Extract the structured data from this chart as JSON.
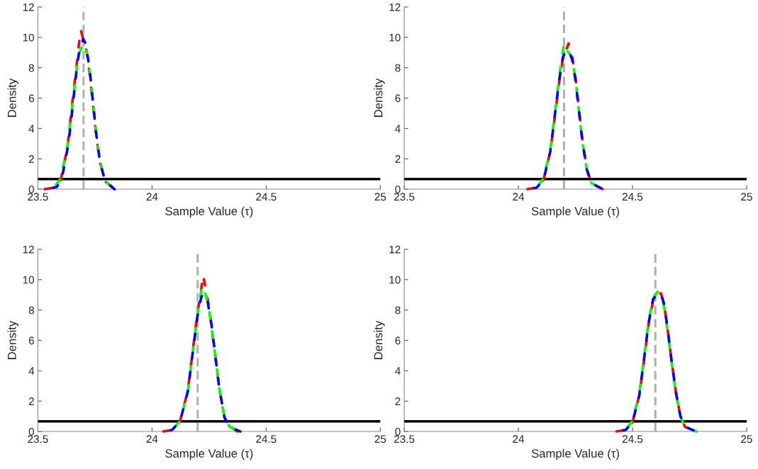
{
  "chart_data": [
    {
      "type": "line",
      "xlabel": "Sample Value (τ)",
      "ylabel": "Density",
      "xlim": [
        23.5,
        25
      ],
      "xticks": [
        23.5,
        24,
        24.5,
        25
      ],
      "ylim": [
        0,
        12
      ],
      "yticks": [
        0,
        2,
        4,
        6,
        8,
        10,
        12
      ],
      "line_style": "dashed",
      "legend": false,
      "grid": false,
      "ref_lines": [
        {
          "axis": "x",
          "value": 23.7,
          "color": "#b0b0b0",
          "line_style": "dashed"
        },
        {
          "axis": "y",
          "value": 0.67,
          "color": "#000000",
          "line_style": "solid"
        }
      ],
      "series": [
        {
          "color": "#ff0000",
          "x": [
            23.53,
            23.57,
            23.6,
            23.63,
            23.65,
            23.67,
            23.68,
            23.688,
            23.7,
            23.71,
            23.725,
            23.74,
            23.755,
            23.77,
            23.795,
            23.84
          ],
          "values": [
            0,
            0.1,
            0.6,
            2.8,
            5.6,
            8.2,
            9.6,
            10.5,
            9.8,
            9.4,
            7.8,
            5.8,
            3.6,
            1.9,
            0.5,
            0
          ]
        },
        {
          "color": "#00ff00",
          "x": [
            23.53,
            23.57,
            23.6,
            23.63,
            23.65,
            23.67,
            23.68,
            23.69,
            23.7,
            23.71,
            23.725,
            23.74,
            23.755,
            23.77,
            23.795,
            23.84
          ],
          "values": [
            0,
            0.1,
            0.7,
            2.9,
            5.4,
            7.9,
            8.9,
            9.3,
            9.6,
            9.4,
            8.0,
            6.1,
            3.8,
            1.9,
            0.5,
            0
          ]
        },
        {
          "color": "#0000ff",
          "x": [
            23.537,
            23.583,
            23.605,
            23.634,
            23.652,
            23.669,
            23.68,
            23.688,
            23.698,
            23.709,
            23.726,
            23.738,
            23.755,
            23.772,
            23.795,
            23.836
          ],
          "values": [
            0,
            0.15,
            0.7,
            3.0,
            5.4,
            7.8,
            9.0,
            9.2,
            9.9,
            9.6,
            8.0,
            6.2,
            3.7,
            1.8,
            0.5,
            0
          ]
        }
      ]
    },
    {
      "type": "line",
      "xlabel": "Sample Value (τ)",
      "ylabel": "Density",
      "xlim": [
        23.5,
        25
      ],
      "xticks": [
        23.5,
        24,
        24.5,
        25
      ],
      "ylim": [
        0,
        12
      ],
      "yticks": [
        0,
        2,
        4,
        6,
        8,
        10,
        12
      ],
      "line_style": "dashed",
      "legend": false,
      "grid": false,
      "ref_lines": [
        {
          "axis": "x",
          "value": 24.2,
          "color": "#b0b0b0",
          "line_style": "dashed"
        },
        {
          "axis": "y",
          "value": 0.67,
          "color": "#000000",
          "line_style": "solid"
        }
      ],
      "series": [
        {
          "color": "#ff0000",
          "x": [
            24.04,
            24.08,
            24.11,
            24.14,
            24.16,
            24.18,
            24.195,
            24.21,
            24.22,
            24.235,
            24.25,
            24.265,
            24.28,
            24.3,
            24.32,
            24.37
          ],
          "values": [
            0,
            0.1,
            0.6,
            2.5,
            4.8,
            7.2,
            8.6,
            9.2,
            9.6,
            8.8,
            7.4,
            5.3,
            3.3,
            1.3,
            0.4,
            0
          ]
        },
        {
          "color": "#00ff00",
          "x": [
            24.04,
            24.08,
            24.11,
            24.14,
            24.16,
            24.18,
            24.2,
            24.21,
            24.22,
            24.235,
            24.25,
            24.265,
            24.28,
            24.3,
            24.32,
            24.37
          ],
          "values": [
            0,
            0.1,
            0.7,
            2.6,
            5.0,
            7.5,
            9.6,
            9.2,
            9.0,
            8.7,
            7.3,
            5.2,
            3.2,
            1.3,
            0.4,
            0
          ]
        },
        {
          "color": "#0000ff",
          "x": [
            24.04,
            24.08,
            24.11,
            24.14,
            24.16,
            24.18,
            24.195,
            24.21,
            24.22,
            24.235,
            24.25,
            24.265,
            24.28,
            24.3,
            24.32,
            24.37
          ],
          "values": [
            0,
            0.1,
            0.6,
            2.5,
            4.9,
            7.3,
            8.7,
            9.2,
            9.1,
            8.6,
            7.2,
            5.2,
            3.2,
            1.3,
            0.4,
            0
          ]
        }
      ]
    },
    {
      "type": "line",
      "xlabel": "Sample Value (τ)",
      "ylabel": "Density",
      "xlim": [
        23.5,
        25
      ],
      "xticks": [
        23.5,
        24,
        24.5,
        25
      ],
      "ylim": [
        0,
        12
      ],
      "yticks": [
        0,
        2,
        4,
        6,
        8,
        10,
        12
      ],
      "line_style": "dashed",
      "legend": false,
      "grid": false,
      "ref_lines": [
        {
          "axis": "x",
          "value": 24.2,
          "color": "#b0b0b0",
          "line_style": "dashed"
        },
        {
          "axis": "y",
          "value": 0.67,
          "color": "#000000",
          "line_style": "solid"
        }
      ],
      "series": [
        {
          "color": "#ff0000",
          "x": [
            24.05,
            24.088,
            24.123,
            24.157,
            24.18,
            24.198,
            24.215,
            24.224,
            24.235,
            24.25,
            24.265,
            24.28,
            24.295,
            24.318,
            24.335,
            24.375
          ],
          "values": [
            0,
            0.1,
            0.7,
            2.7,
            5.5,
            7.7,
            9.3,
            10.3,
            9.4,
            8.2,
            6.4,
            4.6,
            2.8,
            0.9,
            0.4,
            0
          ]
        },
        {
          "color": "#00ff00",
          "x": [
            24.05,
            24.088,
            24.123,
            24.157,
            24.18,
            24.198,
            24.215,
            24.224,
            24.235,
            24.25,
            24.265,
            24.28,
            24.295,
            24.318,
            24.341,
            24.387
          ],
          "values": [
            0,
            0.1,
            0.7,
            2.6,
            5.4,
            7.6,
            9.2,
            9.6,
            9.0,
            8.0,
            6.4,
            4.7,
            2.8,
            0.9,
            0.3,
            0
          ]
        },
        {
          "color": "#0000ff",
          "x": [
            24.054,
            24.088,
            24.123,
            24.157,
            24.18,
            24.198,
            24.215,
            24.224,
            24.243,
            24.261,
            24.278,
            24.295,
            24.318,
            24.341,
            24.387
          ],
          "values": [
            0,
            0.1,
            0.67,
            2.65,
            5.4,
            7.5,
            8.8,
            9.1,
            8.6,
            7.0,
            4.9,
            2.8,
            0.9,
            0.3,
            0
          ]
        }
      ]
    },
    {
      "type": "line",
      "xlabel": "Sample Value (τ)",
      "ylabel": "Density",
      "xlim": [
        23.5,
        25
      ],
      "xticks": [
        23.5,
        24,
        24.5,
        25
      ],
      "ylim": [
        0,
        12
      ],
      "yticks": [
        0,
        2,
        4,
        6,
        8,
        10,
        12
      ],
      "line_style": "dashed",
      "legend": false,
      "grid": false,
      "ref_lines": [
        {
          "axis": "x",
          "value": 24.6,
          "color": "#b0b0b0",
          "line_style": "dashed"
        },
        {
          "axis": "y",
          "value": 0.67,
          "color": "#000000",
          "line_style": "solid"
        }
      ],
      "series": [
        {
          "color": "#ff0000",
          "x": [
            24.43,
            24.47,
            24.5,
            24.53,
            24.55,
            24.57,
            24.59,
            24.61,
            24.625,
            24.64,
            24.655,
            24.67,
            24.69,
            24.71,
            24.73,
            24.79
          ],
          "values": [
            0,
            0.1,
            0.6,
            2.4,
            4.6,
            7.0,
            8.6,
            9.0,
            9.1,
            8.2,
            6.6,
            4.8,
            2.6,
            1.0,
            0.3,
            0
          ]
        },
        {
          "color": "#00ff00",
          "x": [
            24.43,
            24.47,
            24.5,
            24.53,
            24.55,
            24.57,
            24.59,
            24.61,
            24.625,
            24.64,
            24.655,
            24.67,
            24.69,
            24.71,
            24.73,
            24.78
          ],
          "values": [
            0,
            0.1,
            0.7,
            2.5,
            4.8,
            7.2,
            8.8,
            9.2,
            9.0,
            8.1,
            6.5,
            4.7,
            2.5,
            1.0,
            0.3,
            0
          ]
        },
        {
          "color": "#0000ff",
          "x": [
            24.43,
            24.47,
            24.5,
            24.53,
            24.55,
            24.57,
            24.59,
            24.61,
            24.625,
            24.64,
            24.655,
            24.67,
            24.69,
            24.71,
            24.73,
            24.78
          ],
          "values": [
            0,
            0.1,
            0.6,
            2.4,
            4.7,
            7.1,
            8.7,
            9.1,
            9.1,
            8.3,
            6.6,
            4.8,
            2.6,
            1.0,
            0.3,
            0
          ]
        }
      ]
    }
  ]
}
